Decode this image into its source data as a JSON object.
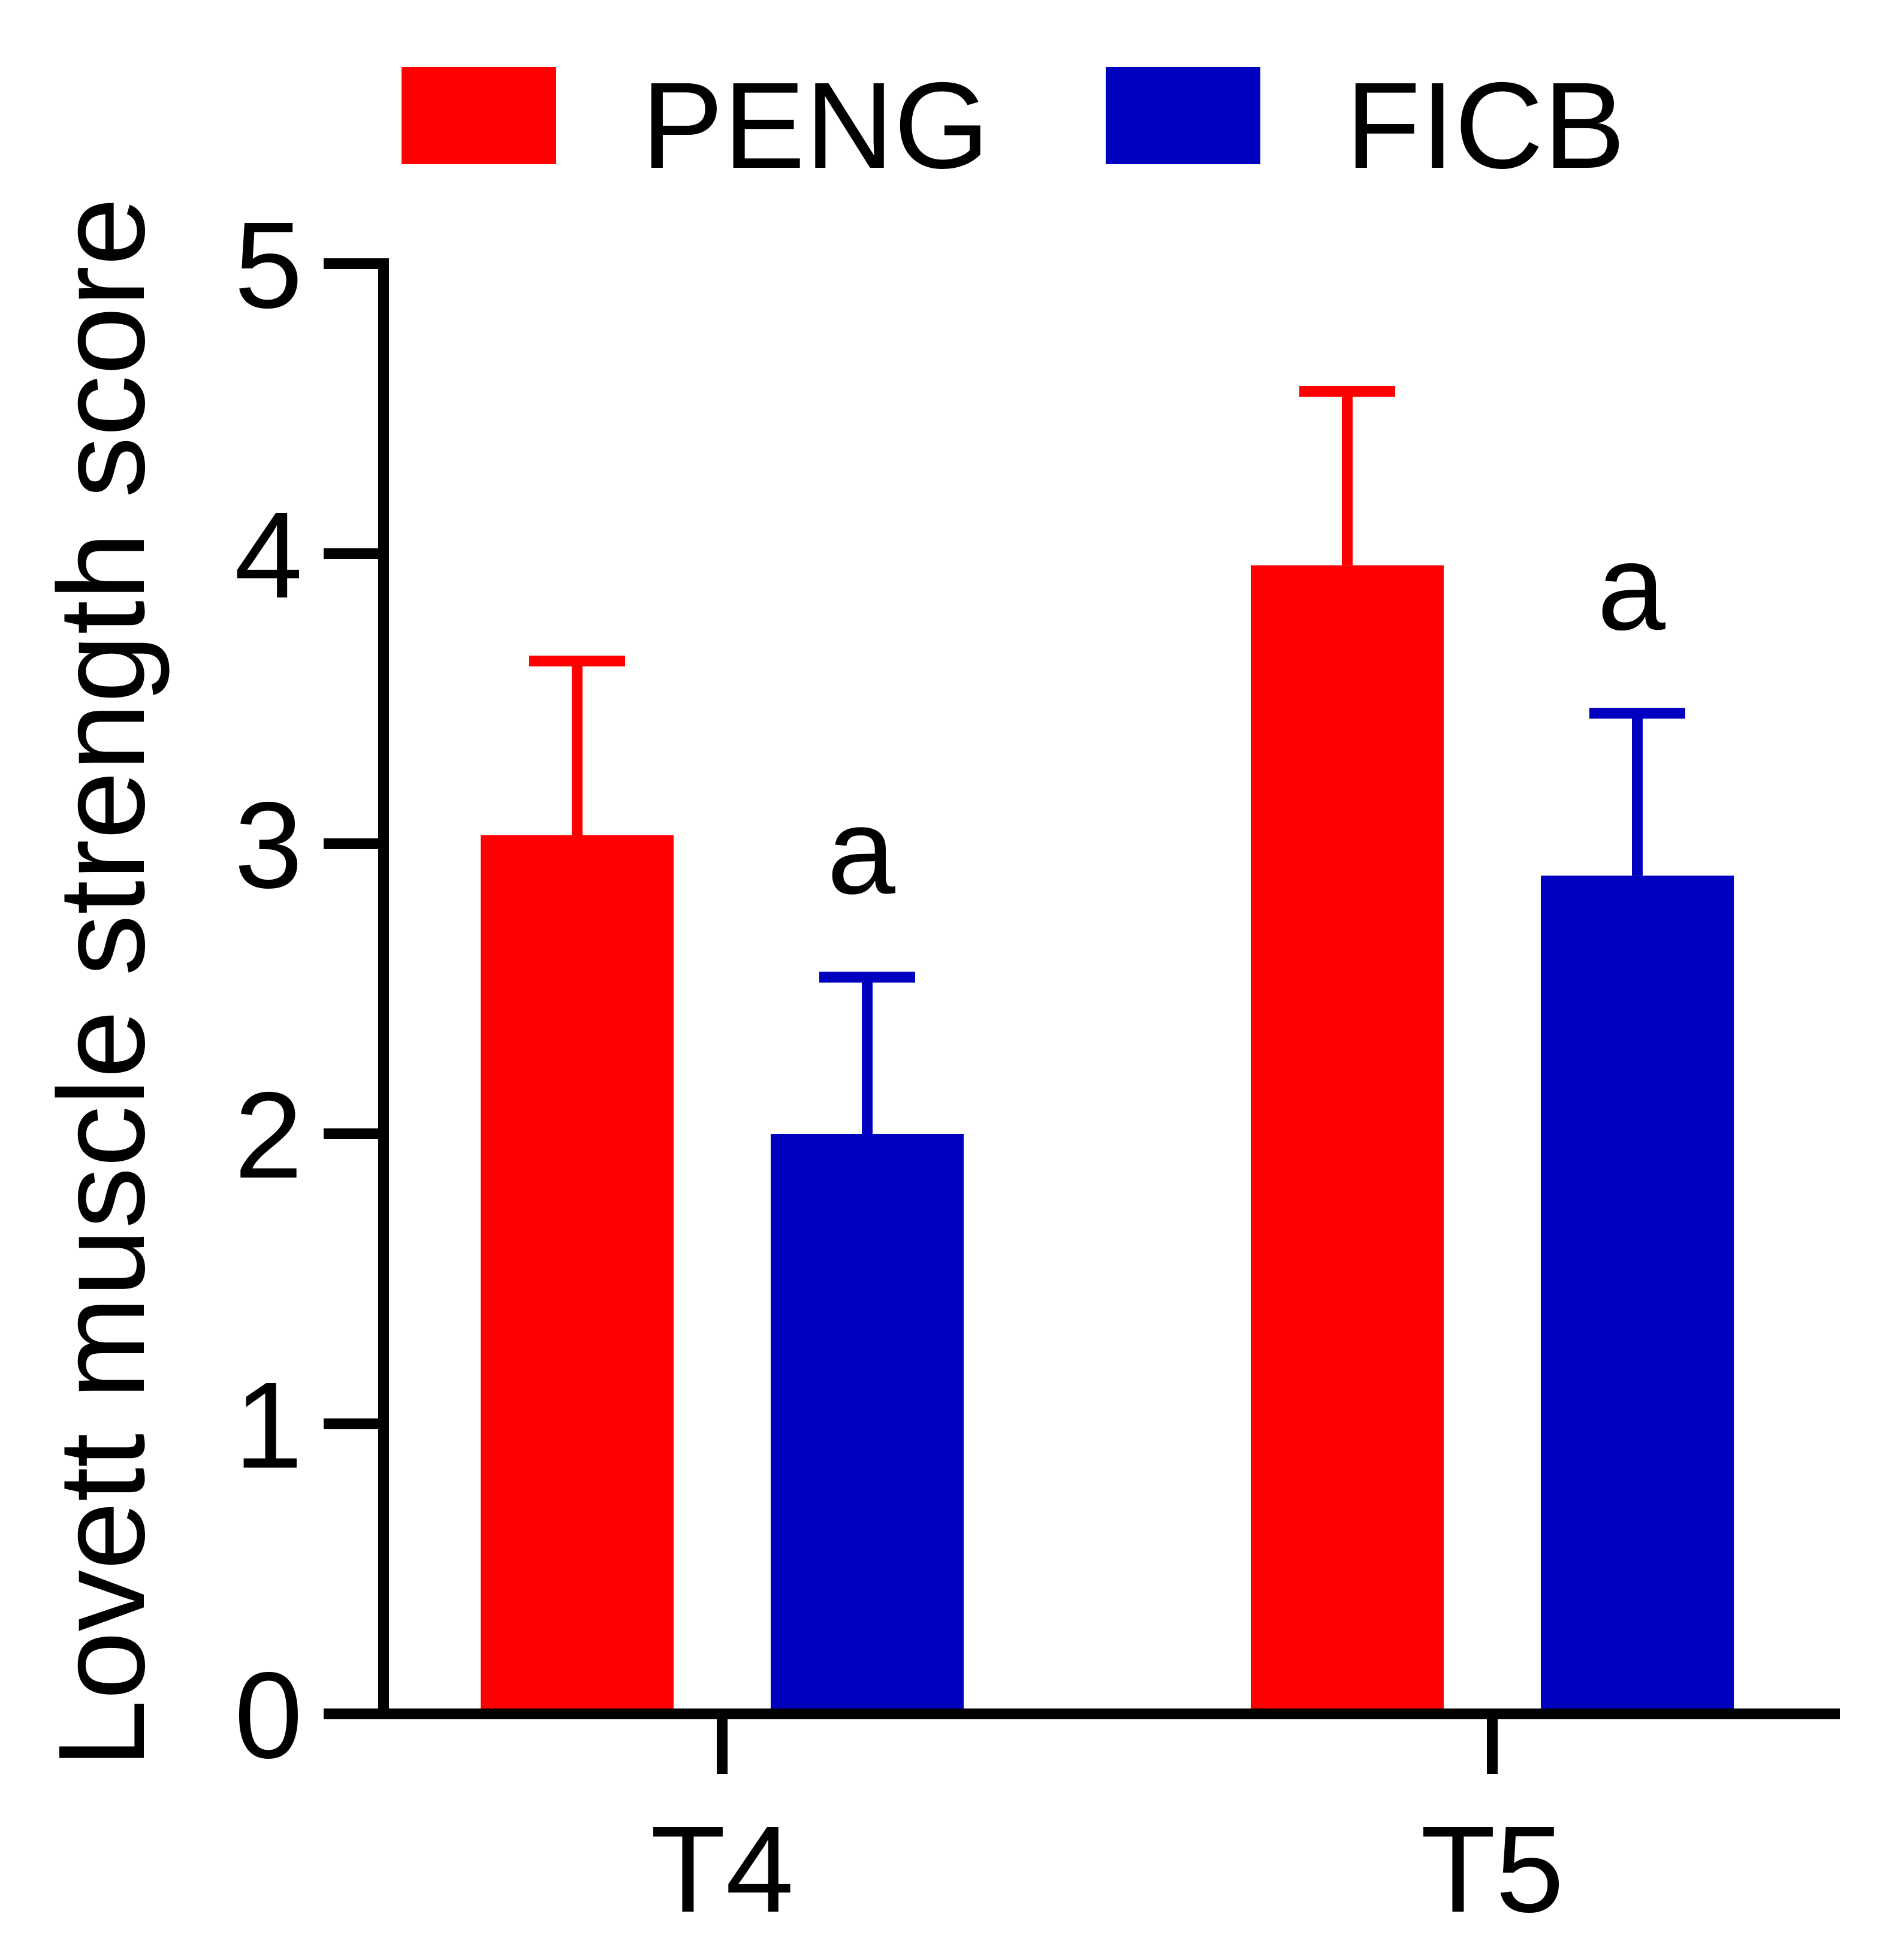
{
  "chart_data": {
    "type": "bar",
    "ylabel": "Lovett muscle strength score",
    "ylim": [
      0,
      5
    ],
    "yticks": [
      "0",
      "1",
      "2",
      "3",
      "4",
      "5"
    ],
    "categories": [
      "T4",
      "T5"
    ],
    "legend_position": "top",
    "series": [
      {
        "name": "PENG",
        "color": "#ff0000",
        "values": [
          3.03,
          3.96
        ],
        "errors": [
          0.6,
          0.6
        ],
        "annotations": [
          "",
          ""
        ]
      },
      {
        "name": "FICB",
        "color": "#0000bf",
        "values": [
          2.0,
          2.89
        ],
        "errors": [
          0.54,
          0.56
        ],
        "annotations": [
          "a",
          "a"
        ]
      }
    ]
  }
}
